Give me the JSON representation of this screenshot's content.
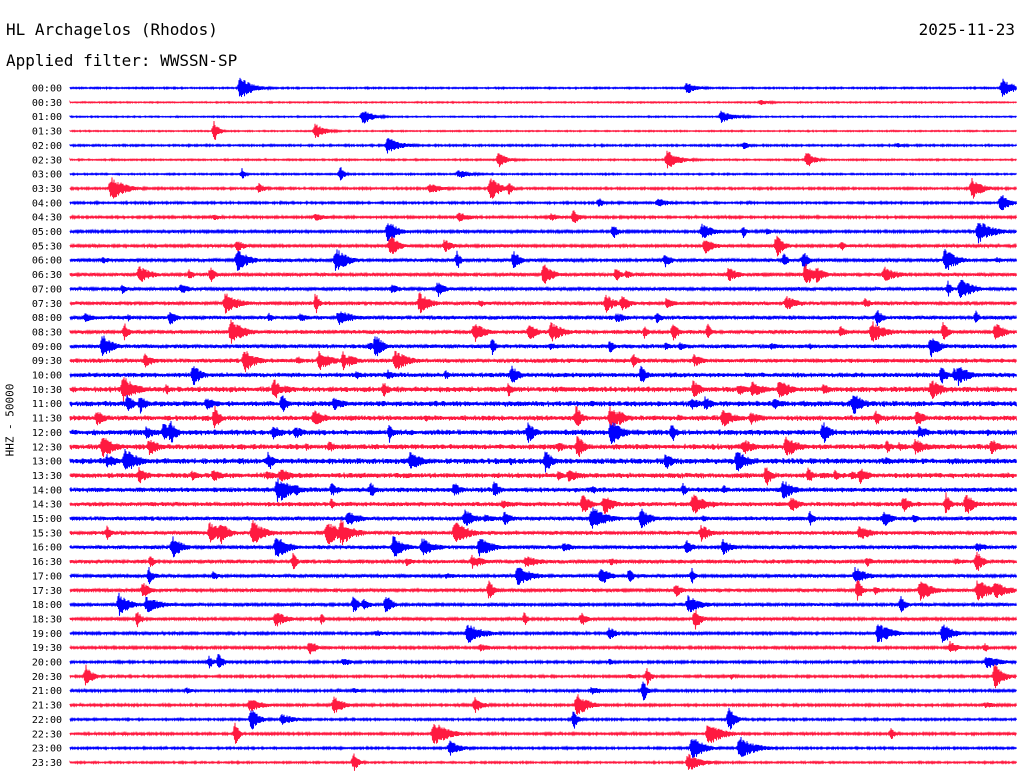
{
  "header": {
    "station": "HL Archagelos (Rhodos)",
    "date": "2025-11-23",
    "filter_prefix": "Applied filter:",
    "filter_name": "WWSSN-SP"
  },
  "colors": {
    "trace_a": "#0000ff",
    "trace_b": "#ff1a40",
    "text": "#000000",
    "background": "#ffffff"
  },
  "chart_data": {
    "type": "line",
    "title": "HL Archagelos (Rhodos)",
    "ylabel": "HHZ - 50000",
    "xlabel": "",
    "trace_interval_minutes": 30,
    "tick_labels": [
      "00:00",
      "00:30",
      "01:00",
      "01:30",
      "02:00",
      "02:30",
      "03:00",
      "03:30",
      "04:00",
      "04:30",
      "05:00",
      "05:30",
      "06:00",
      "06:30",
      "07:00",
      "07:30",
      "08:00",
      "08:30",
      "09:00",
      "09:30",
      "10:00",
      "10:30",
      "11:00",
      "11:30",
      "12:00",
      "12:30",
      "13:00",
      "13:30",
      "14:00",
      "14:30",
      "15:00",
      "15:30",
      "16:00",
      "16:30",
      "17:00",
      "17:30",
      "18:00",
      "18:30",
      "19:00",
      "19:30",
      "20:00",
      "20:30",
      "21:00",
      "21:30",
      "22:00",
      "22:30",
      "23:00",
      "23:30"
    ],
    "series": [
      {
        "color_pattern": "alternating",
        "colors": [
          "#0000ff",
          "#ff1a40"
        ]
      }
    ],
    "noise_level": [
      0.6,
      0.5,
      0.5,
      0.5,
      0.7,
      0.6,
      0.6,
      0.8,
      0.8,
      0.9,
      1.0,
      1.1,
      1.3,
      1.3,
      1.3,
      1.4,
      1.5,
      1.5,
      1.6,
      1.7,
      1.9,
      2.2,
      2.2,
      2.1,
      2.2,
      2.2,
      2.3,
      2.1,
      1.9,
      1.8,
      1.7,
      1.6,
      1.5,
      1.5,
      1.3,
      1.3,
      1.2,
      1.1,
      1.0,
      1.0,
      0.9,
      0.9,
      0.9,
      0.9,
      0.8,
      0.9,
      0.8,
      0.7
    ],
    "events_per_trace": [
      3,
      1,
      2,
      2,
      3,
      3,
      3,
      6,
      3,
      5,
      6,
      8,
      10,
      10,
      6,
      9,
      11,
      12,
      12,
      10,
      10,
      14,
      12,
      13,
      13,
      14,
      14,
      13,
      11,
      10,
      10,
      9,
      9,
      9,
      9,
      8,
      7,
      6,
      5,
      5,
      5,
      5,
      4,
      5,
      4,
      4,
      3,
      2
    ]
  }
}
